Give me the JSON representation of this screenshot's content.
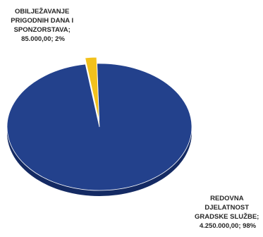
{
  "chart_data": {
    "type": "pie",
    "style": "3d",
    "slices": [
      {
        "name": "REDOVNA DJELATNOST GRADSKE SLUŽBE",
        "value": "4.250.000,00",
        "percent": "98%",
        "label_lines": [
          "REDOVNA",
          "DJELATNOST",
          "GRADSKE SLUŽBE;",
          "4.250.000,00; 98%"
        ],
        "color": "#23418c",
        "side_color": "#142a63"
      },
      {
        "name": "OBILJEŽAVANJE PRIGODNIH DANA I SPONZORSTAVA",
        "value": "85.000,00",
        "percent": "2%",
        "label_lines": [
          "OBILJEŽAVANJE",
          "PRIGODNIH DANA I",
          "SPONZORSTAVA;",
          "85.000,00; 2%"
        ],
        "color": "#f2c11c",
        "side_color": "#b88a08"
      }
    ],
    "fractions": [
      0.98,
      0.02
    ],
    "legend": "none"
  }
}
